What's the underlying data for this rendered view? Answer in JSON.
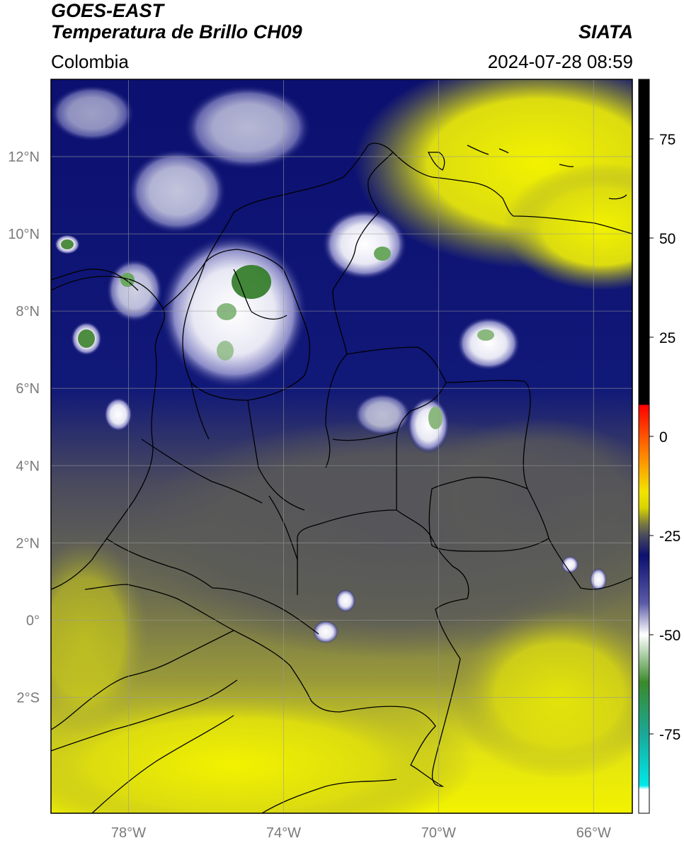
{
  "header": {
    "title_line1": "GOES-EAST",
    "title_line2": "Temperatura de Brillo CH09",
    "brand": "SIATA",
    "region": "Colombia",
    "datetime": "2024-07-28 08:59"
  },
  "map": {
    "lon_ticks": [
      {
        "value": -78,
        "label": "78°W"
      },
      {
        "value": -74,
        "label": "74°W"
      },
      {
        "value": -70,
        "label": "70°W"
      },
      {
        "value": -66,
        "label": "66°W"
      }
    ],
    "lat_ticks": [
      {
        "value": 12,
        "label": "12°N"
      },
      {
        "value": 10,
        "label": "10°N"
      },
      {
        "value": 8,
        "label": "8°N"
      },
      {
        "value": 6,
        "label": "6°N"
      },
      {
        "value": 4,
        "label": "4°N"
      },
      {
        "value": 2,
        "label": "2°N"
      },
      {
        "value": 0,
        "label": "0°"
      },
      {
        "value": -2,
        "label": "2°S"
      }
    ],
    "extent": {
      "lon_min": -80.0,
      "lon_max": -65.0,
      "lat_min": -5.0,
      "lat_max": 14.0
    },
    "colors": {
      "warm": "#f2f200",
      "olive": "#8c8c3c",
      "gray": "#4a4a5e",
      "navy": "#0c1070",
      "white": "#f4f4f8",
      "green": "#3a8a2a",
      "borders": "#000000",
      "grid": "#9a9a9a"
    }
  },
  "colorbar": {
    "ticks": [
      75,
      50,
      25,
      0,
      -25,
      -50,
      -75
    ],
    "range": [
      -95,
      90
    ],
    "stops": [
      {
        "value": 90,
        "color": "#000000"
      },
      {
        "value": 8,
        "color": "#000000"
      },
      {
        "value": 7.9,
        "color": "#ff0000"
      },
      {
        "value": -5,
        "color": "#ff8800"
      },
      {
        "value": -14,
        "color": "#f2e400"
      },
      {
        "value": -18,
        "color": "#d8d400"
      },
      {
        "value": -22,
        "color": "#7a7a40"
      },
      {
        "value": -25,
        "color": "#4a4a5e"
      },
      {
        "value": -30,
        "color": "#0c1070"
      },
      {
        "value": -42,
        "color": "#5a5aa8"
      },
      {
        "value": -50,
        "color": "#ffffff"
      },
      {
        "value": -62,
        "color": "#3a8a2a"
      },
      {
        "value": -75,
        "color": "#1aa898"
      },
      {
        "value": -88,
        "color": "#00e8e8"
      },
      {
        "value": -89,
        "color": "#ffffff"
      },
      {
        "value": -95,
        "color": "#ffffff"
      }
    ]
  }
}
